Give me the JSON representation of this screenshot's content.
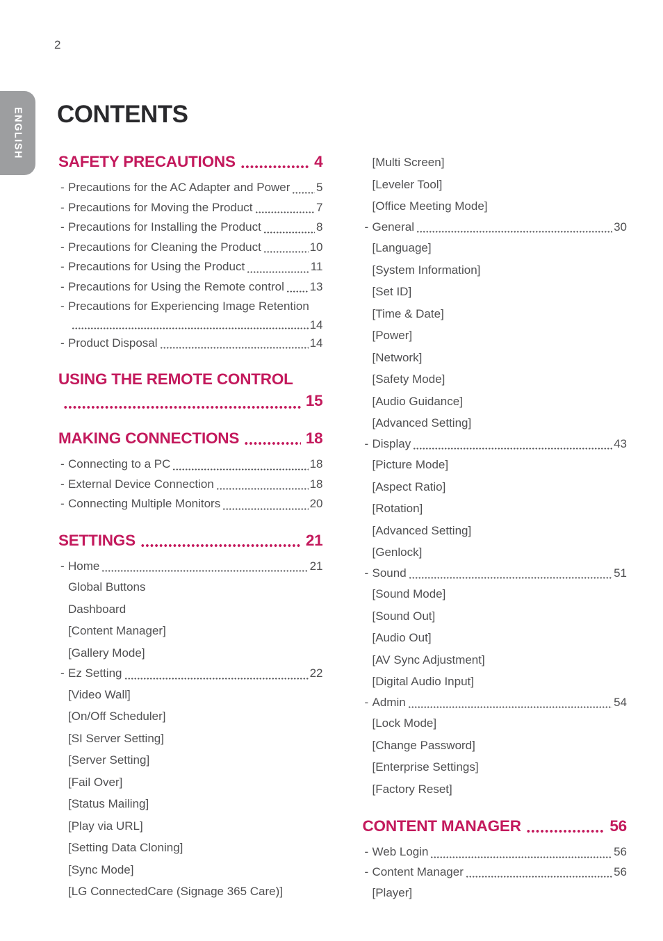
{
  "page": {
    "number": "2",
    "language_tab": "ENGLISH",
    "title": "CONTENTS"
  },
  "colors": {
    "accent": "#c3195c",
    "body_text": "#505052",
    "dot_leader": "#58585b",
    "tab_background": "#9d9ea0",
    "title_text": "#29292c",
    "background": "#ffffff"
  },
  "toc": {
    "columns": [
      {
        "blocks": [
          {
            "type": "chapter",
            "label": "SAFETY PRECAUTIONS",
            "page": "4",
            "wrap": false
          },
          {
            "type": "item",
            "label": "Precautions for the AC Adapter and Power",
            "page": "5",
            "wrap": false
          },
          {
            "type": "item",
            "label": "Precautions for Moving the Product",
            "page": "7",
            "wrap": false
          },
          {
            "type": "item",
            "label": "Precautions for Installing the Product",
            "page": "8",
            "wrap": false
          },
          {
            "type": "item",
            "label": "Precautions for Cleaning the Product",
            "page": "10",
            "wrap": false
          },
          {
            "type": "item",
            "label": "Precautions for Using the Product",
            "page": "11",
            "wrap": false
          },
          {
            "type": "item",
            "label": "Precautions for Using the Remote control",
            "page": "13",
            "wrap": false
          },
          {
            "type": "item",
            "label": "Precautions for Experiencing Image Retention",
            "page": "14",
            "wrap": true
          },
          {
            "type": "item",
            "label": "Product Disposal",
            "page": "14",
            "wrap": false
          },
          {
            "type": "chapter",
            "label": "USING THE REMOTE CONTROL",
            "page": "15",
            "wrap": true
          },
          {
            "type": "chapter",
            "label": "MAKING CONNECTIONS",
            "page": "18",
            "wrap": false
          },
          {
            "type": "item",
            "label": "Connecting to a PC",
            "page": "18",
            "wrap": false
          },
          {
            "type": "item",
            "label": "External Device Connection",
            "page": "18",
            "wrap": false
          },
          {
            "type": "item",
            "label": "Connecting Multiple Monitors",
            "page": "20",
            "wrap": false
          },
          {
            "type": "chapter",
            "label": "SETTINGS",
            "page": "21",
            "wrap": false
          },
          {
            "type": "item",
            "label": "Home",
            "page": "21",
            "wrap": false
          },
          {
            "type": "sub",
            "label": "Global Buttons"
          },
          {
            "type": "sub",
            "label": "Dashboard"
          },
          {
            "type": "sub",
            "label": "[Content Manager]"
          },
          {
            "type": "sub",
            "label": "[Gallery Mode]"
          },
          {
            "type": "item",
            "label": "Ez Setting",
            "page": "22",
            "wrap": false
          },
          {
            "type": "sub",
            "label": "[Video Wall]"
          },
          {
            "type": "sub",
            "label": "[On/Off Scheduler]"
          },
          {
            "type": "sub",
            "label": "[SI Server Setting]"
          },
          {
            "type": "sub",
            "label": "[Server Setting]"
          },
          {
            "type": "sub",
            "label": "[Fail Over]"
          },
          {
            "type": "sub",
            "label": "[Status Mailing]"
          },
          {
            "type": "sub",
            "label": "[Play via URL]"
          },
          {
            "type": "sub",
            "label": "[Setting Data Cloning]"
          },
          {
            "type": "sub",
            "label": "[Sync Mode]"
          },
          {
            "type": "sub",
            "label": "[LG ConnectedCare (Signage 365 Care)]"
          }
        ]
      },
      {
        "blocks": [
          {
            "type": "sub",
            "label": "[Multi Screen]"
          },
          {
            "type": "sub",
            "label": "[Leveler Tool]"
          },
          {
            "type": "sub",
            "label": "[Office Meeting Mode]"
          },
          {
            "type": "item",
            "label": "General",
            "page": "30",
            "wrap": false
          },
          {
            "type": "sub",
            "label": "[Language]"
          },
          {
            "type": "sub",
            "label": "[System Information]"
          },
          {
            "type": "sub",
            "label": "[Set ID]"
          },
          {
            "type": "sub",
            "label": "[Time & Date]"
          },
          {
            "type": "sub",
            "label": "[Power]"
          },
          {
            "type": "sub",
            "label": "[Network]"
          },
          {
            "type": "sub",
            "label": "[Safety Mode]"
          },
          {
            "type": "sub",
            "label": "[Audio Guidance]"
          },
          {
            "type": "sub",
            "label": "[Advanced Setting]"
          },
          {
            "type": "item",
            "label": "Display",
            "page": "43",
            "wrap": false
          },
          {
            "type": "sub",
            "label": "[Picture Mode]"
          },
          {
            "type": "sub",
            "label": "[Aspect Ratio]"
          },
          {
            "type": "sub",
            "label": "[Rotation]"
          },
          {
            "type": "sub",
            "label": "[Advanced Setting]"
          },
          {
            "type": "sub",
            "label": "[Genlock]"
          },
          {
            "type": "item",
            "label": "Sound",
            "page": "51",
            "wrap": false
          },
          {
            "type": "sub",
            "label": "[Sound Mode]"
          },
          {
            "type": "sub",
            "label": "[Sound Out]"
          },
          {
            "type": "sub",
            "label": "[Audio Out]"
          },
          {
            "type": "sub",
            "label": "[AV Sync Adjustment]"
          },
          {
            "type": "sub",
            "label": "[Digital Audio Input]"
          },
          {
            "type": "item",
            "label": "Admin",
            "page": "54",
            "wrap": false
          },
          {
            "type": "sub",
            "label": "[Lock Mode]"
          },
          {
            "type": "sub",
            "label": "[Change Password]"
          },
          {
            "type": "sub",
            "label": "[Enterprise Settings]"
          },
          {
            "type": "sub",
            "label": "[Factory Reset]"
          },
          {
            "type": "chapter",
            "label": "CONTENT MANAGER",
            "page": "56",
            "wrap": false
          },
          {
            "type": "item",
            "label": "Web Login",
            "page": "56",
            "wrap": false
          },
          {
            "type": "item",
            "label": "Content Manager",
            "page": "56",
            "wrap": false
          },
          {
            "type": "sub",
            "label": "[Player]"
          }
        ]
      }
    ]
  }
}
